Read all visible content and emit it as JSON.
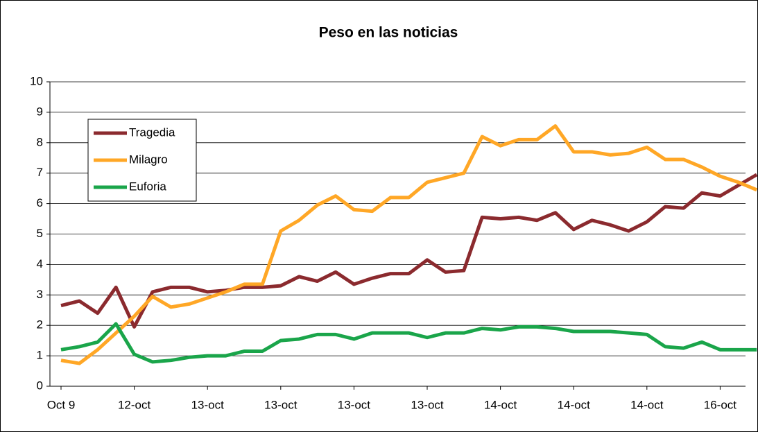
{
  "chart_data": {
    "type": "line",
    "title": "Peso en las noticias",
    "categories": [
      "Oct  9",
      null,
      null,
      null,
      "12-oct",
      null,
      null,
      null,
      "13-oct",
      null,
      null,
      null,
      "13-oct",
      null,
      null,
      null,
      "13-oct",
      null,
      null,
      null,
      "13-oct",
      null,
      null,
      null,
      "14-oct",
      null,
      null,
      null,
      "14-oct",
      null,
      null,
      null,
      "14-oct",
      null,
      null,
      null,
      "16-oct",
      null,
      null
    ],
    "series": [
      {
        "name": "Tragedia",
        "color": "#8b2a2e",
        "values": [
          2.65,
          2.8,
          2.4,
          3.25,
          1.95,
          3.1,
          3.25,
          3.25,
          3.1,
          3.15,
          3.25,
          3.25,
          3.3,
          3.6,
          3.45,
          3.75,
          3.35,
          3.55,
          3.7,
          3.7,
          4.15,
          3.75,
          3.8,
          5.55,
          5.5,
          5.55,
          5.45,
          5.7,
          5.15,
          5.45,
          5.3,
          5.1,
          5.4,
          5.9,
          5.85,
          6.35,
          6.25,
          6.6,
          6.95
        ]
      },
      {
        "name": "Milagro",
        "color": "#ffa726",
        "values": [
          0.85,
          0.75,
          1.2,
          1.75,
          2.3,
          2.95,
          2.6,
          2.7,
          2.9,
          3.1,
          3.35,
          3.35,
          5.1,
          5.45,
          5.95,
          6.25,
          5.8,
          5.75,
          6.2,
          6.2,
          6.7,
          6.85,
          7.0,
          8.2,
          7.9,
          8.1,
          8.1,
          8.55,
          7.7,
          7.7,
          7.6,
          7.65,
          7.85,
          7.45,
          7.45,
          7.2,
          6.9,
          6.7,
          6.45
        ]
      },
      {
        "name": "Euforia",
        "color": "#1aa54a",
        "values": [
          1.2,
          1.3,
          1.45,
          2.05,
          1.05,
          0.8,
          0.85,
          0.95,
          1.0,
          1.0,
          1.15,
          1.15,
          1.5,
          1.55,
          1.7,
          1.7,
          1.55,
          1.75,
          1.75,
          1.75,
          1.6,
          1.75,
          1.75,
          1.9,
          1.85,
          1.95,
          1.95,
          1.9,
          1.8,
          1.8,
          1.8,
          1.75,
          1.7,
          1.3,
          1.25,
          1.45,
          1.2,
          1.2,
          1.2
        ]
      }
    ],
    "ylim": [
      0,
      10
    ],
    "yticks": [
      0,
      1,
      2,
      3,
      4,
      5,
      6,
      7,
      8,
      9,
      10
    ],
    "grid": true,
    "legend": "upper left"
  }
}
